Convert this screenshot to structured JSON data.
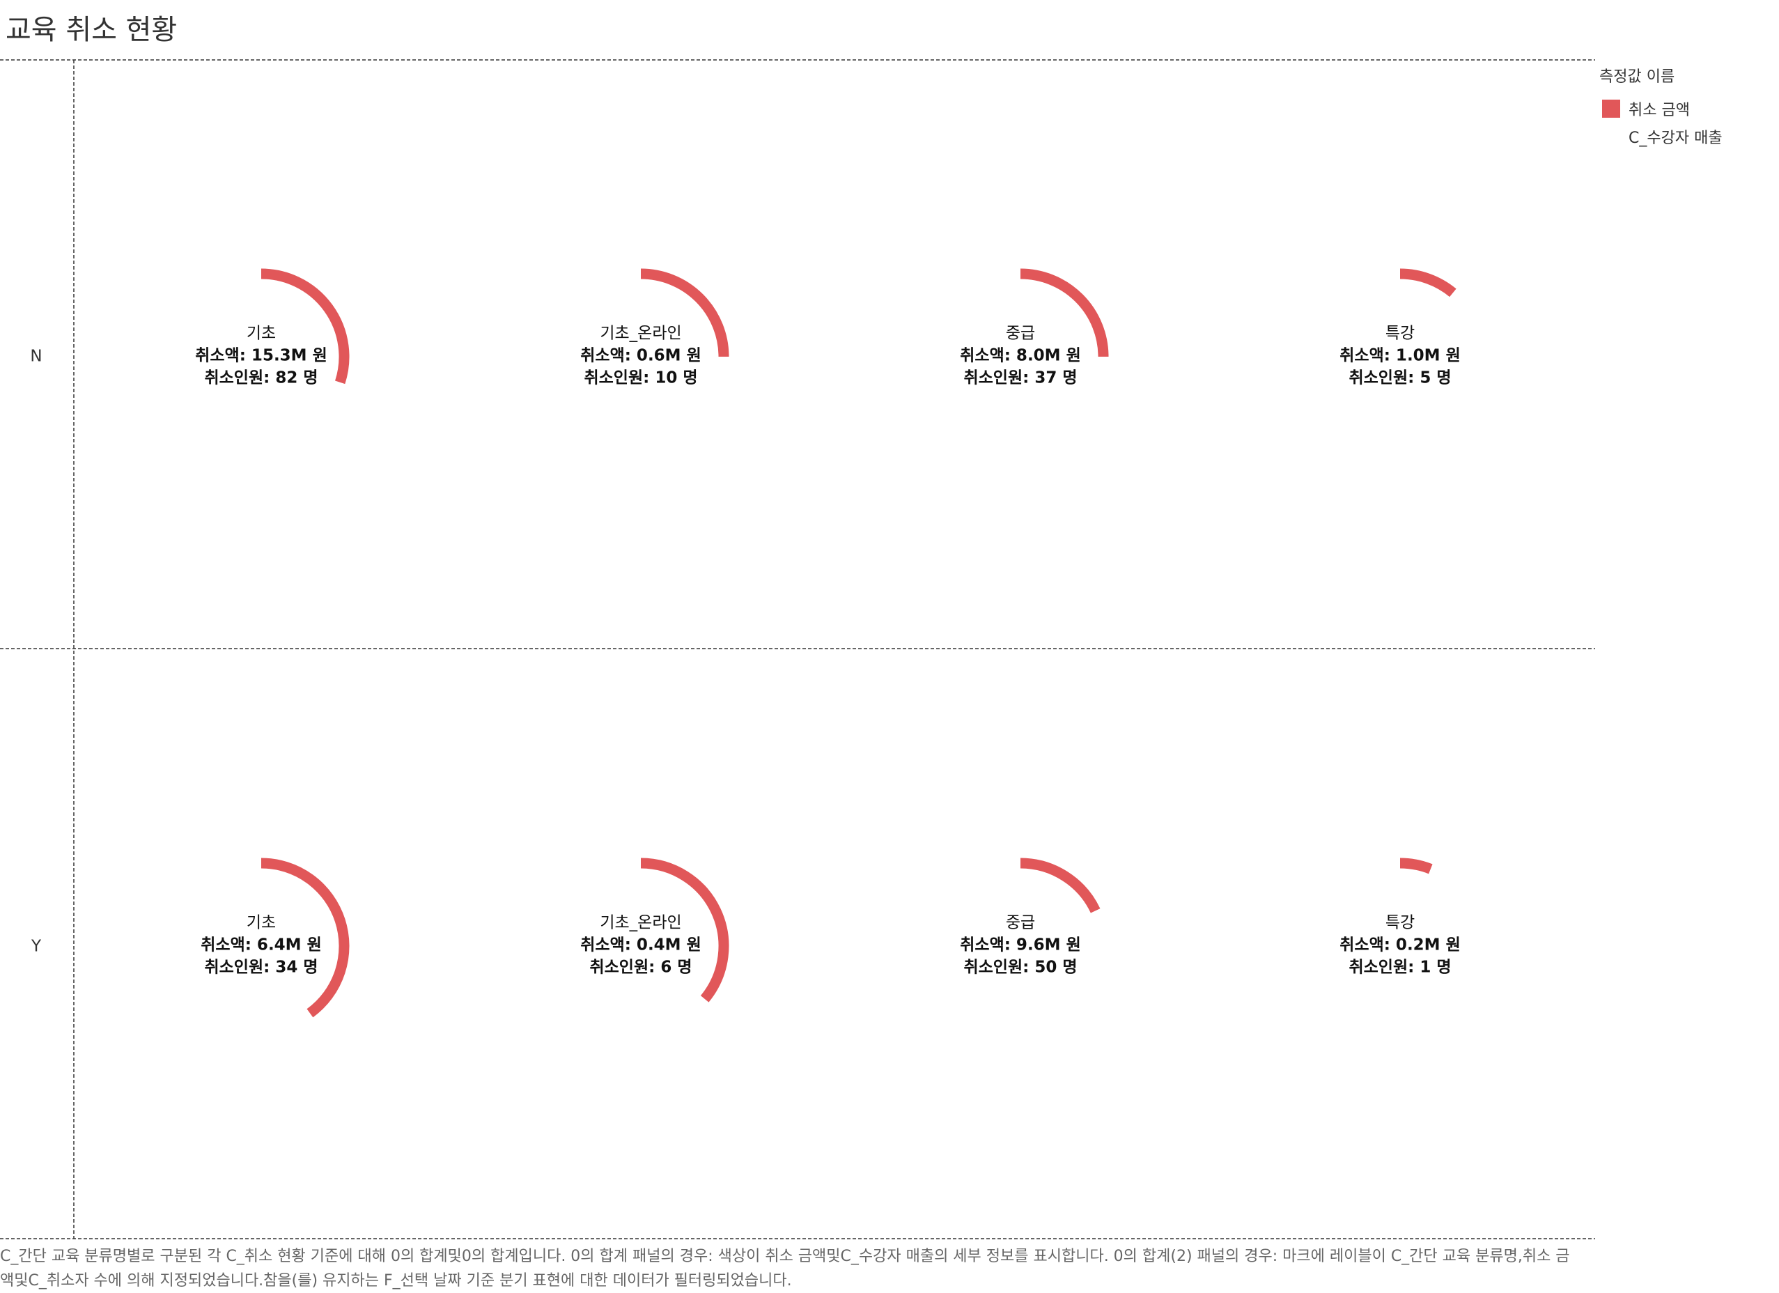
{
  "title": "교육 취소 현황",
  "colors": {
    "accent": "#e15759",
    "grid": "#333333"
  },
  "legend": {
    "title": "측정값 이름",
    "items": [
      {
        "label": "취소 금액",
        "color": "#e15759"
      },
      {
        "label": "C_수강자 매출",
        "color": ""
      }
    ]
  },
  "footnote": "C_간단 교육 분류명별로 구분된 각 C_취소 현황 기준에 대해 0의 합계및0의 합계입니다. 0의 합계 패널의 경우: 색상이 취소 금액및C_수강자 매출의 세부 정보를 표시합니다. 0의 합계(2) 패널의 경우: 마크에 레이블이 C_간단 교육 분류명,취소 금액및C_취소자 수에 의해 지정되었습니다.참을(를) 유지하는 F_선택 날짜 기준 분기 표현에 대한 데이터가 필터링되었습니다.",
  "chart_data": {
    "type": "pie",
    "rows": [
      "N",
      "Y"
    ],
    "columns": [
      "기초",
      "기초_온라인",
      "중급",
      "특강"
    ],
    "cells": [
      {
        "row": "N",
        "category": "기초",
        "name_label": "기초",
        "amount_label": "취소액: 15.3M 원",
        "count_label": "취소인원: 82 명",
        "amount_m": 15.3,
        "count": 82,
        "arc_fraction": 0.3
      },
      {
        "row": "N",
        "category": "기초_온라인",
        "name_label": "기초_온라인",
        "amount_label": "취소액: 0.6M 원",
        "count_label": "취소인원: 10 명",
        "amount_m": 0.6,
        "count": 10,
        "arc_fraction": 0.25
      },
      {
        "row": "N",
        "category": "중급",
        "name_label": "중급",
        "amount_label": "취소액: 8.0M 원",
        "count_label": "취소인원: 37 명",
        "amount_m": 8.0,
        "count": 37,
        "arc_fraction": 0.25
      },
      {
        "row": "N",
        "category": "특강",
        "name_label": "특강",
        "amount_label": "취소액: 1.0M 원",
        "count_label": "취소인원: 5 명",
        "amount_m": 1.0,
        "count": 5,
        "arc_fraction": 0.11
      },
      {
        "row": "Y",
        "category": "기초",
        "name_label": "기초",
        "amount_label": "취소액: 6.4M 원",
        "count_label": "취소인원: 34 명",
        "amount_m": 6.4,
        "count": 34,
        "arc_fraction": 0.4
      },
      {
        "row": "Y",
        "category": "기초_온라인",
        "name_label": "기초_온라인",
        "amount_label": "취소액: 0.4M 원",
        "count_label": "취소인원: 6 명",
        "amount_m": 0.4,
        "count": 6,
        "arc_fraction": 0.36
      },
      {
        "row": "Y",
        "category": "중급",
        "name_label": "중급",
        "amount_label": "취소액: 9.6M 원",
        "count_label": "취소인원: 50 명",
        "amount_m": 9.6,
        "count": 50,
        "arc_fraction": 0.18
      },
      {
        "row": "Y",
        "category": "특강",
        "name_label": "특강",
        "amount_label": "취소액: 0.2M 원",
        "count_label": "취소인원: 1 명",
        "amount_m": 0.2,
        "count": 1,
        "arc_fraction": 0.06
      }
    ]
  }
}
